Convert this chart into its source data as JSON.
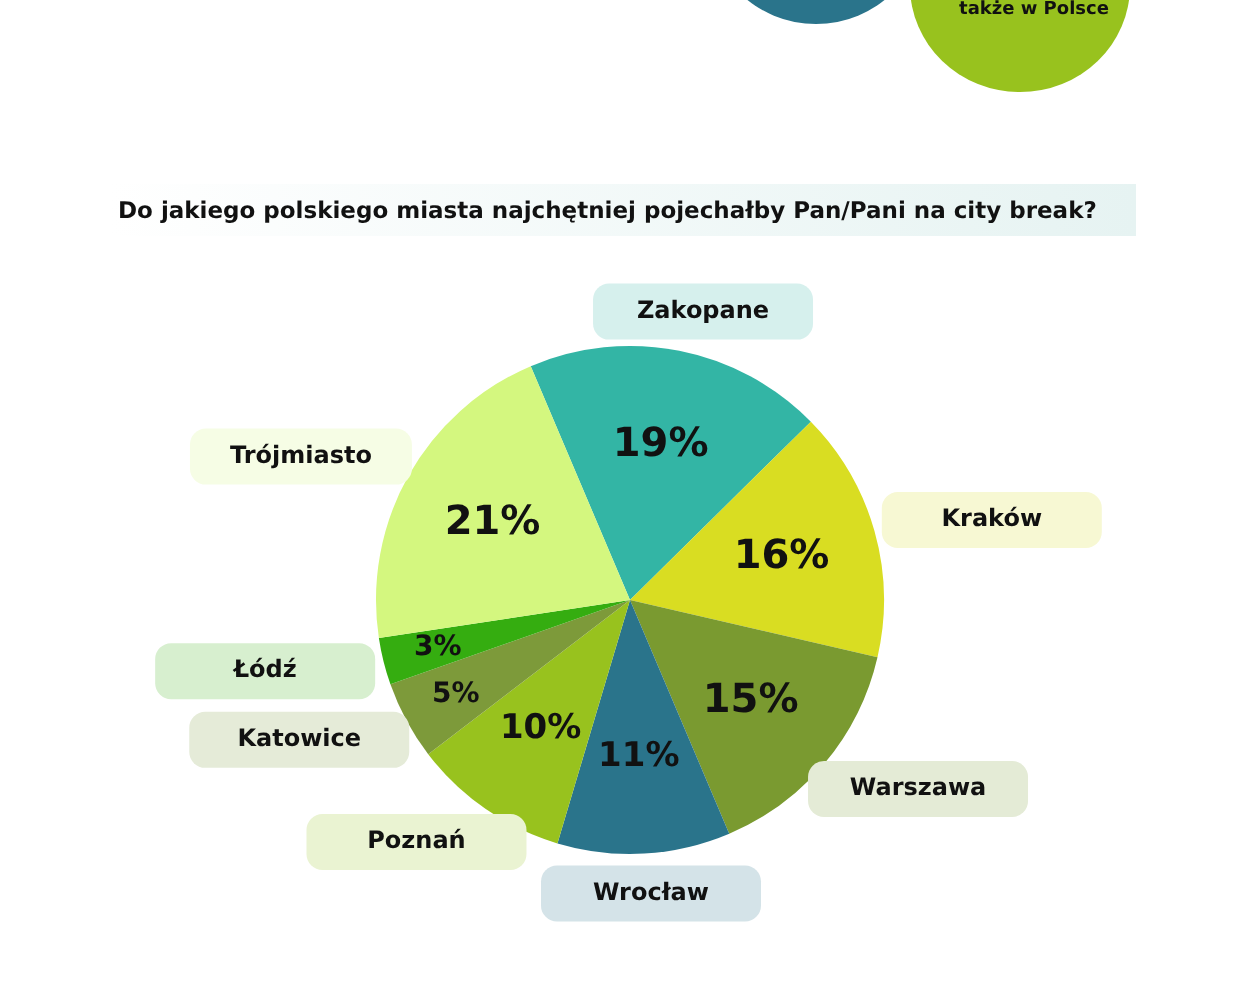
{
  "chart_data": {
    "type": "pie",
    "title": "Do jakiego polskiego miasta najchętniej pojechałby Pan/Pani na city break?",
    "categories": [
      "Zakopane",
      "Kraków",
      "Warszawa",
      "Wrocław",
      "Poznań",
      "Katowice",
      "Łódź",
      "Trójmiasto"
    ],
    "values": [
      19,
      16,
      15,
      11,
      10,
      5,
      3,
      21
    ],
    "value_labels": [
      "19%",
      "16%",
      "15%",
      "11%",
      "10%",
      "5%",
      "3%",
      "21%"
    ],
    "colors": [
      "#33b5a5",
      "#d9dd22",
      "#7a9a30",
      "#2a748b",
      "#98c21e",
      "#7d9a3a",
      "#35ad10",
      "#d4f77f"
    ],
    "annotations": [
      "także w Polsce"
    ]
  }
}
